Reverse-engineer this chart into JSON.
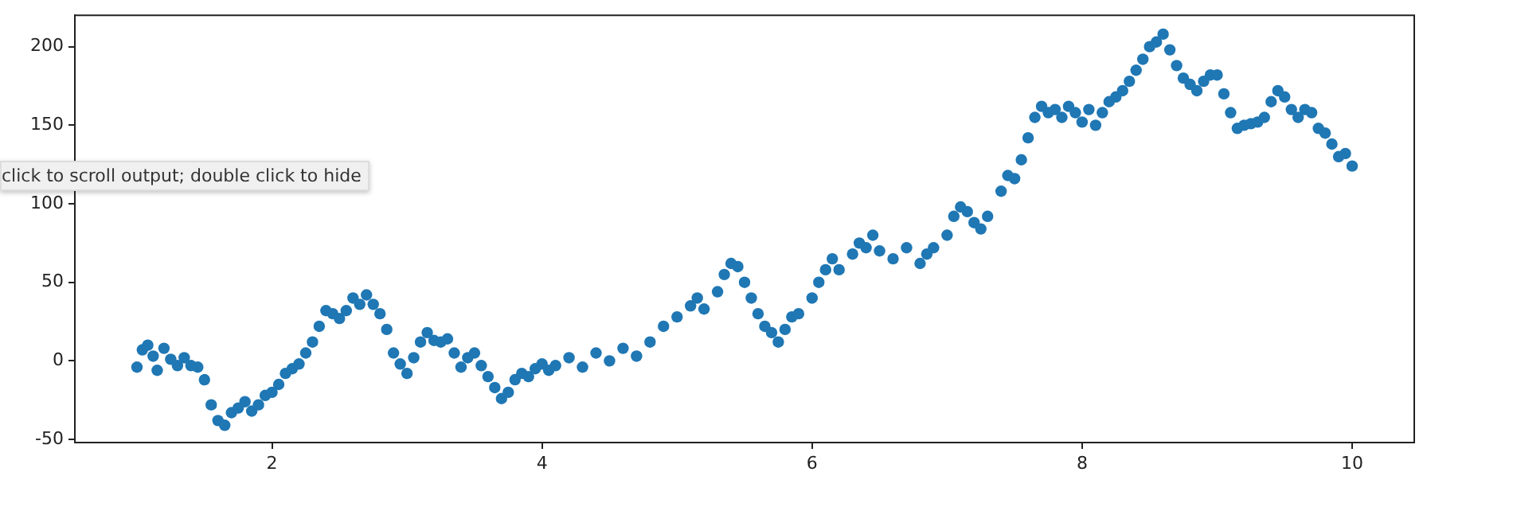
{
  "chart_data": {
    "type": "scatter",
    "color": "#1f77b4",
    "marker": "circle",
    "grid": false,
    "legend": false,
    "xlim": [
      0.54,
      10.46
    ],
    "ylim": [
      -52,
      220
    ],
    "xticks": [
      2,
      4,
      6,
      8,
      10
    ],
    "yticks": [
      -50,
      0,
      50,
      100,
      150,
      200
    ],
    "annotations": [
      "click to scroll output; double click to hide"
    ],
    "x": [
      1.0,
      1.04,
      1.08,
      1.12,
      1.15,
      1.2,
      1.25,
      1.3,
      1.35,
      1.4,
      1.45,
      1.5,
      1.55,
      1.6,
      1.65,
      1.7,
      1.75,
      1.8,
      1.85,
      1.9,
      1.95,
      2.0,
      2.05,
      2.1,
      2.15,
      2.2,
      2.25,
      2.3,
      2.35,
      2.4,
      2.45,
      2.5,
      2.55,
      2.6,
      2.65,
      2.7,
      2.75,
      2.8,
      2.85,
      2.9,
      2.95,
      3.0,
      3.05,
      3.1,
      3.15,
      3.2,
      3.25,
      3.3,
      3.35,
      3.4,
      3.45,
      3.5,
      3.55,
      3.6,
      3.65,
      3.7,
      3.75,
      3.8,
      3.85,
      3.9,
      3.95,
      4.0,
      4.05,
      4.1,
      4.2,
      4.3,
      4.4,
      4.5,
      4.6,
      4.7,
      4.8,
      4.9,
      5.0,
      5.1,
      5.15,
      5.2,
      5.3,
      5.35,
      5.4,
      5.45,
      5.5,
      5.55,
      5.6,
      5.65,
      5.7,
      5.75,
      5.8,
      5.85,
      5.9,
      6.0,
      6.05,
      6.1,
      6.15,
      6.2,
      6.3,
      6.35,
      6.4,
      6.45,
      6.5,
      6.6,
      6.7,
      6.8,
      6.85,
      6.9,
      7.0,
      7.05,
      7.1,
      7.15,
      7.2,
      7.25,
      7.3,
      7.4,
      7.45,
      7.5,
      7.55,
      7.6,
      7.65,
      7.7,
      7.75,
      7.8,
      7.85,
      7.9,
      7.95,
      8.0,
      8.05,
      8.1,
      8.15,
      8.2,
      8.25,
      8.3,
      8.35,
      8.4,
      8.45,
      8.5,
      8.55,
      8.6,
      8.65,
      8.7,
      8.75,
      8.8,
      8.85,
      8.9,
      8.95,
      9.0,
      9.05,
      9.1,
      9.15,
      9.2,
      9.25,
      9.3,
      9.35,
      9.4,
      9.45,
      9.5,
      9.55,
      9.6,
      9.65,
      9.7,
      9.75,
      9.8,
      9.85,
      9.9,
      9.95,
      10.0
    ],
    "values": [
      -4,
      7,
      10,
      3,
      -6,
      8,
      1,
      -3,
      2,
      -3,
      -4,
      -12,
      -28,
      -38,
      -41,
      -33,
      -30,
      -26,
      -32,
      -28,
      -22,
      -20,
      -15,
      -8,
      -5,
      -2,
      5,
      12,
      22,
      32,
      30,
      27,
      32,
      40,
      36,
      42,
      36,
      30,
      20,
      5,
      -2,
      -8,
      2,
      12,
      18,
      13,
      12,
      14,
      5,
      -4,
      2,
      5,
      -3,
      -10,
      -17,
      -24,
      -20,
      -12,
      -8,
      -10,
      -5,
      -2,
      -6,
      -3,
      2,
      -4,
      5,
      0,
      8,
      3,
      12,
      22,
      28,
      35,
      40,
      33,
      44,
      55,
      62,
      60,
      50,
      40,
      30,
      22,
      18,
      12,
      20,
      28,
      30,
      40,
      50,
      58,
      65,
      58,
      68,
      75,
      72,
      80,
      70,
      65,
      72,
      62,
      68,
      72,
      80,
      92,
      98,
      95,
      88,
      84,
      92,
      108,
      118,
      116,
      128,
      142,
      155,
      162,
      158,
      160,
      155,
      162,
      158,
      152,
      160,
      150,
      158,
      165,
      168,
      172,
      178,
      185,
      192,
      200,
      203,
      208,
      198,
      188,
      180,
      176,
      172,
      178,
      182,
      182,
      170,
      158,
      148,
      150,
      151,
      152,
      155,
      165,
      172,
      168,
      160,
      155,
      160,
      158,
      148,
      145,
      138,
      130,
      132,
      124
    ]
  }
}
